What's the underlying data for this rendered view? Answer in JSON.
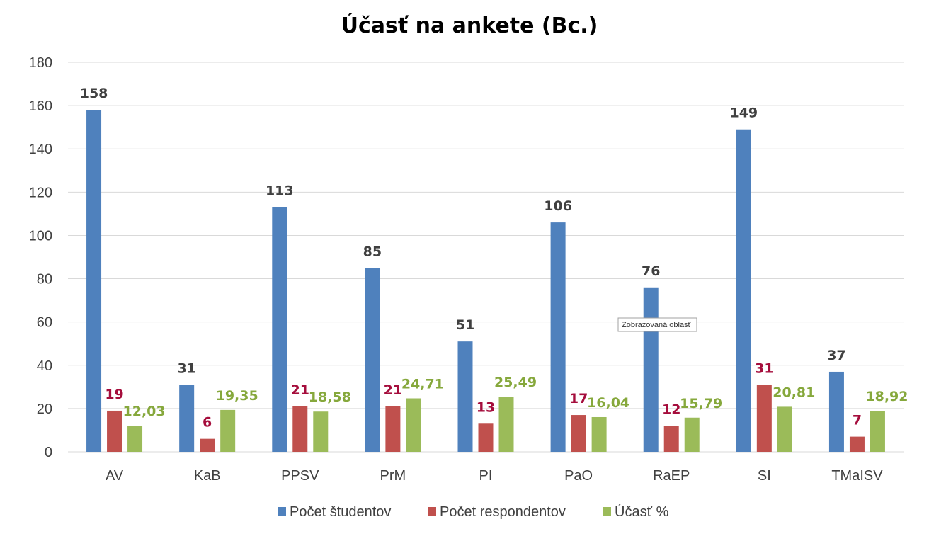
{
  "chart_data": {
    "type": "bar",
    "title": "Účasť na ankete (Bc.)",
    "xlabel": "",
    "ylabel": "",
    "ylim": [
      0,
      180
    ],
    "yticks": [
      0,
      20,
      40,
      60,
      80,
      100,
      120,
      140,
      160,
      180
    ],
    "grid": true,
    "legend_position": "bottom",
    "categories": [
      "AV",
      "KaB",
      "PPSV",
      "PrM",
      "PI",
      "PaO",
      "RaEP",
      "SI",
      "TMaISV"
    ],
    "series": [
      {
        "name": "Počet študentov",
        "color": "#4F81BD",
        "label_color": "#404040",
        "values": [
          158,
          31,
          113,
          85,
          51,
          106,
          76,
          149,
          37
        ],
        "labels": [
          "158",
          "31",
          "113",
          "85",
          "51",
          "106",
          "76",
          "149",
          "37"
        ]
      },
      {
        "name": "Počet respondentov",
        "color": "#C0504D",
        "label_color": "#A50D3C",
        "values": [
          19,
          6,
          21,
          21,
          13,
          17,
          12,
          31,
          7
        ],
        "labels": [
          "19",
          "6",
          "21",
          "21",
          "13",
          "17",
          "12",
          "31",
          "7"
        ]
      },
      {
        "name": "Účasť %",
        "color": "#9BBB59",
        "label_color": "#86A83C",
        "values": [
          12.03,
          19.35,
          18.58,
          24.71,
          25.49,
          16.04,
          15.79,
          20.81,
          18.92
        ],
        "labels": [
          "12,03",
          "19,35",
          "18,58",
          "24,71",
          "25,49",
          "16,04",
          "15,79",
          "20,81",
          "18,92"
        ]
      }
    ]
  },
  "tooltip": {
    "text": "Zobrazovaná oblasť"
  }
}
